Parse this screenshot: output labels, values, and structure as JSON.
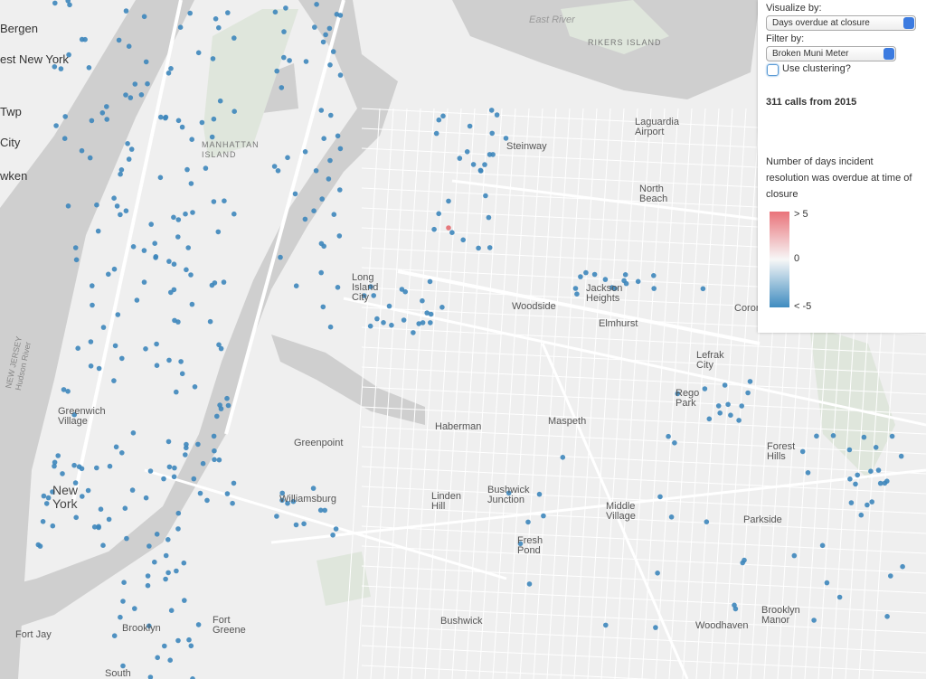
{
  "panel": {
    "visualize_label": "Visualize by:",
    "visualize_select": "Days overdue at closure",
    "filter_label": "Filter by:",
    "filter_select": "Broken Muni Meter",
    "clustering_label": "Use clustering?",
    "summary": "311 calls from 2015",
    "legend_title": [
      "Number of days incident",
      "resolution was overdue at time of",
      "closure"
    ],
    "legend_labels": [
      "> 5",
      "0",
      "< -5"
    ]
  },
  "map_labels": [
    {
      "lines": [
        "Bergen"
      ]
    },
    {
      "lines": [
        "est New York"
      ]
    },
    {
      "lines": [
        "Twp"
      ]
    },
    {
      "lines": [
        "City"
      ]
    },
    {
      "lines": [
        "wken"
      ]
    },
    {
      "lines": [
        "East River"
      ]
    },
    {
      "lines": [
        "RIKERS ISLAND"
      ]
    },
    {
      "lines": [
        "MANHATTAN",
        "ISLAND"
      ]
    },
    {
      "lines": [
        "Laguardia",
        "Airport"
      ]
    },
    {
      "lines": [
        "Steinway"
      ]
    },
    {
      "lines": [
        "North",
        "Beach"
      ]
    },
    {
      "lines": [
        "Long",
        "Island",
        "City"
      ]
    },
    {
      "lines": [
        "Woodside"
      ]
    },
    {
      "lines": [
        "Jackson",
        "Heights"
      ]
    },
    {
      "lines": [
        "Elmhurst"
      ]
    },
    {
      "lines": [
        "Coron"
      ]
    },
    {
      "lines": [
        "Lefrak",
        "City"
      ]
    },
    {
      "lines": [
        "Rego",
        "Park"
      ]
    },
    {
      "lines": [
        "Haberman"
      ]
    },
    {
      "lines": [
        "Maspeth"
      ]
    },
    {
      "lines": [
        "Greenwich",
        "Village"
      ]
    },
    {
      "lines": [
        "Greenpoint"
      ]
    },
    {
      "lines": [
        "Forest",
        "Hills"
      ]
    },
    {
      "lines": [
        "New",
        "York"
      ]
    },
    {
      "lines": [
        "Williamsburg"
      ]
    },
    {
      "lines": [
        "Linden",
        "Hill"
      ]
    },
    {
      "lines": [
        "Bushwick",
        "Junction"
      ]
    },
    {
      "lines": [
        "Middle",
        "Village"
      ]
    },
    {
      "lines": [
        "Parkside"
      ]
    },
    {
      "lines": [
        "Fresh",
        "Pond"
      ]
    },
    {
      "lines": [
        "Fort",
        "Greene"
      ]
    },
    {
      "lines": [
        "Bushwick"
      ]
    },
    {
      "lines": [
        "Brooklyn",
        "Manor"
      ]
    },
    {
      "lines": [
        "Woodhaven"
      ]
    },
    {
      "lines": [
        "Brooklyn"
      ]
    },
    {
      "lines": [
        "Fort Jay"
      ]
    },
    {
      "lines": [
        "South"
      ]
    },
    {
      "lines": [
        "NEW JERSEY",
        "Hudson River"
      ]
    }
  ]
}
